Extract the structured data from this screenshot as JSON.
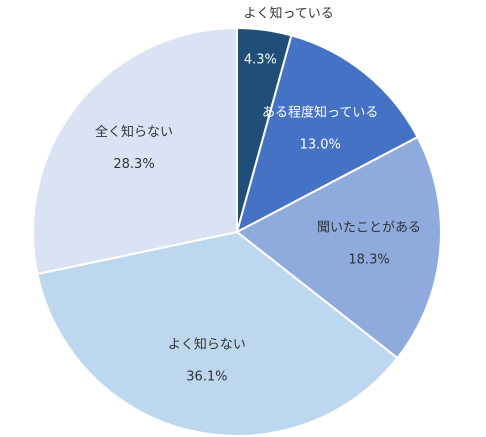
{
  "chart_data": {
    "type": "pie",
    "categories": [
      "よく知っている",
      "ある程度知っている",
      "聞いたことがある",
      "よく知らない",
      "全く知らない"
    ],
    "values": [
      4.3,
      13.0,
      18.3,
      36.1,
      28.3
    ],
    "value_labels": [
      "4.3%",
      "13.0%",
      "18.3%",
      "36.1%",
      "28.3%"
    ],
    "colors": [
      "#1f4e79",
      "#4472c4",
      "#8faadc",
      "#bdd7ee",
      "#dae3f3"
    ]
  }
}
